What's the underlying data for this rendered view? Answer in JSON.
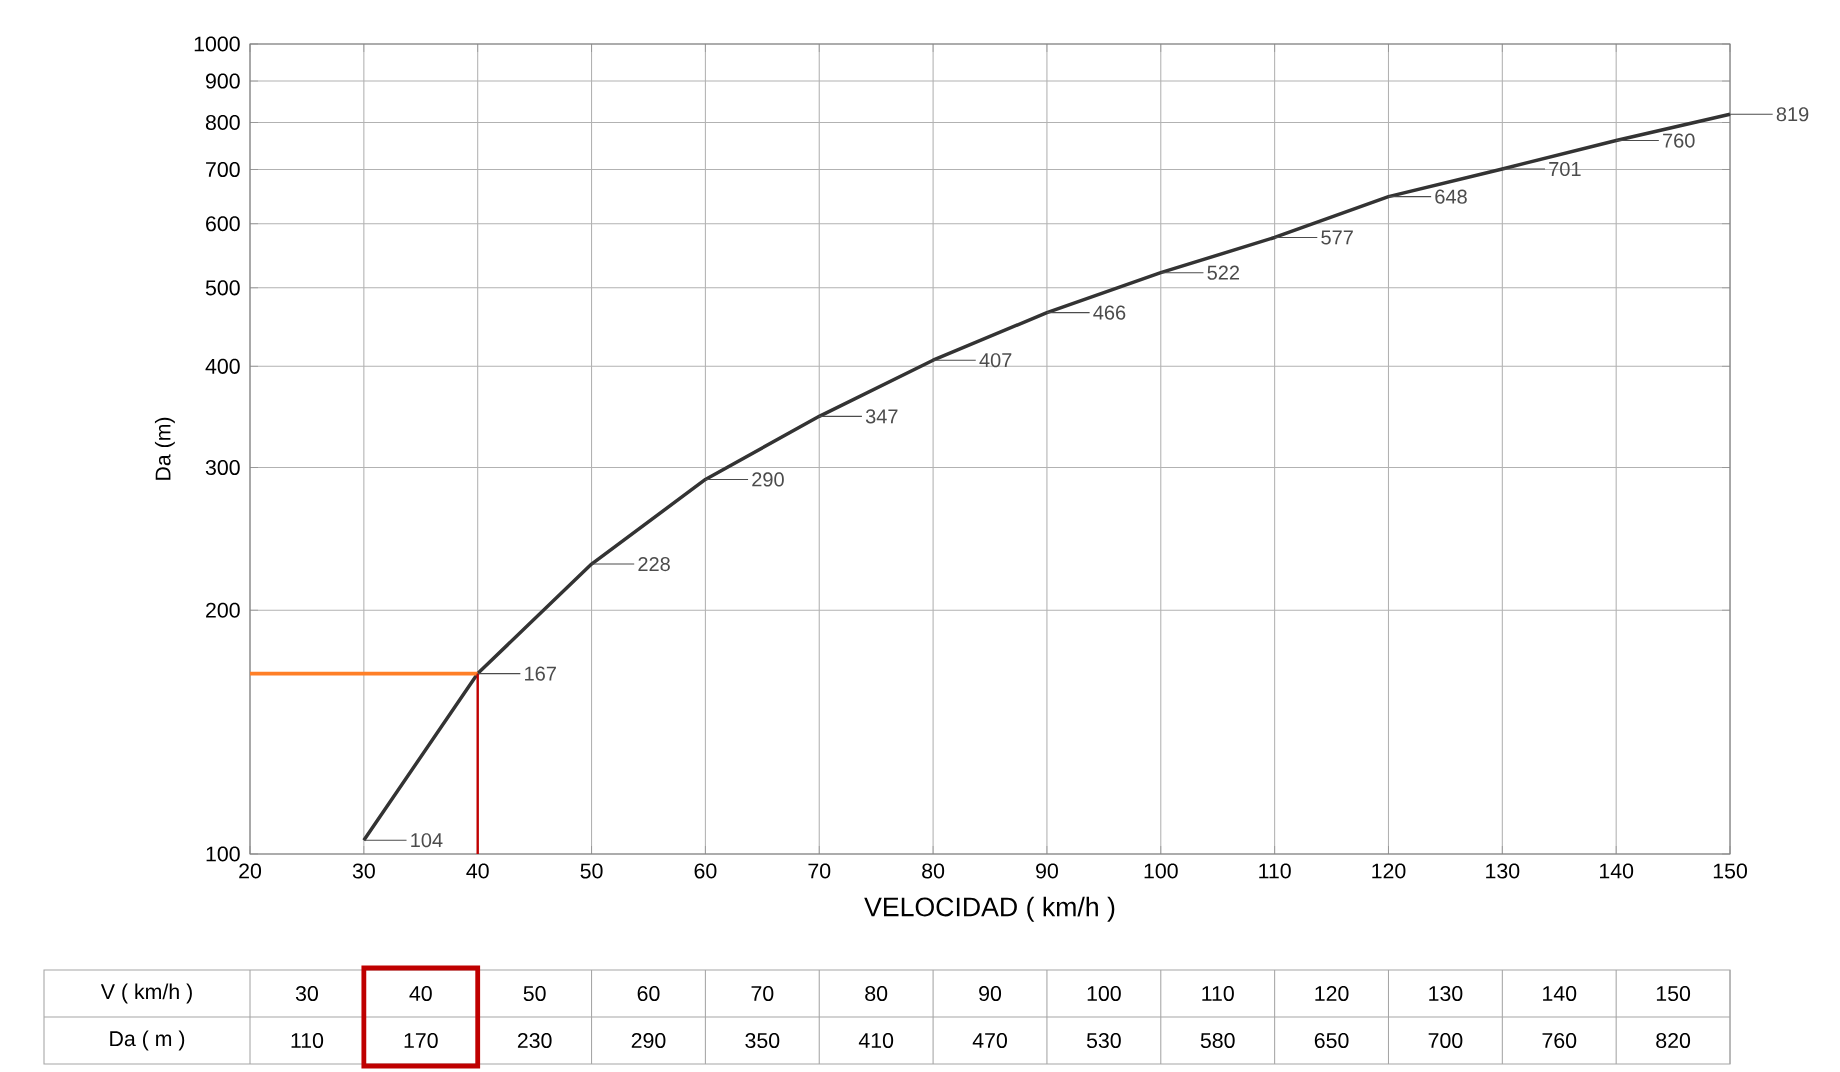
{
  "chart_data": [
    {
      "type": "line",
      "xlabel": "VELOCIDAD ( km/h )",
      "ylabel": "Da (m)",
      "color": "#333333",
      "x": [
        30,
        40,
        50,
        60,
        70,
        80,
        90,
        100,
        110,
        120,
        130,
        140,
        150
      ],
      "values": [
        104,
        167,
        228,
        290,
        347,
        407,
        466,
        522,
        577,
        648,
        701,
        760,
        819
      ],
      "data_labels": true,
      "log": "y",
      "grid": true,
      "xlim": [
        20,
        150
      ],
      "xticks": [
        20,
        30,
        40,
        50,
        60,
        70,
        80,
        90,
        100,
        110,
        120,
        130,
        140,
        150
      ],
      "ylim": [
        100,
        1000
      ],
      "yticks": [
        100,
        200,
        300,
        400,
        500,
        600,
        700,
        800,
        900,
        1000
      ],
      "ref_lines": [
        {
          "axis": "y",
          "value": 167,
          "color": "#ff7f27"
        },
        {
          "axis": "x",
          "value": 40,
          "color": "#c00000"
        }
      ]
    },
    {
      "type": "heatmap",
      "xlabel": "V ( km/h )",
      "categories": [
        "30",
        "40",
        "50",
        "60",
        "70",
        "80",
        "90",
        "100",
        "110",
        "120",
        "130",
        "140",
        "150"
      ],
      "y_categories": [
        "Da ( m )"
      ],
      "cells": [
        [
          110,
          170,
          230,
          290,
          350,
          410,
          470,
          530,
          580,
          650,
          700,
          760,
          820
        ]
      ],
      "data_labels": true
    }
  ]
}
